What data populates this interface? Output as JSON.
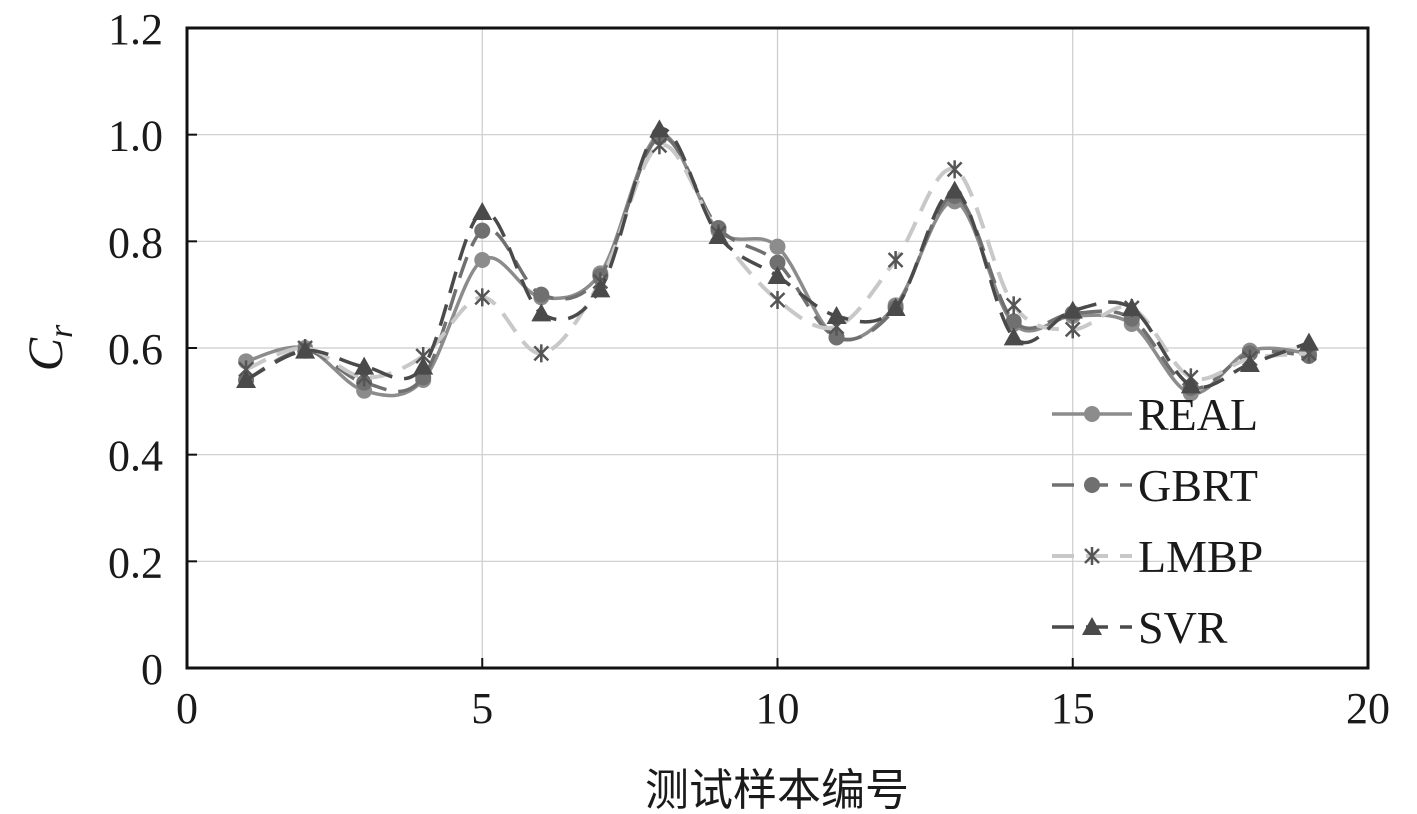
{
  "chart_data": {
    "type": "line",
    "xlabel": "测试样本编号",
    "ylabel": "C",
    "ylabel_subscript": "r",
    "xlim": [
      0,
      20
    ],
    "ylim": [
      0,
      1.2
    ],
    "xticks": [
      "0",
      "5",
      "10",
      "15",
      "20"
    ],
    "yticks": [
      "0",
      "0.2",
      "0.4",
      "0.6",
      "0.8",
      "1.0",
      "1.2"
    ],
    "grid": true,
    "legend_position": "bottom-right",
    "x": [
      1,
      2,
      3,
      4,
      5,
      6,
      7,
      8,
      9,
      10,
      11,
      12,
      13,
      14,
      15,
      16,
      17,
      18,
      19
    ],
    "series": [
      {
        "name": "REAL",
        "marker": "circle",
        "dash": "solid",
        "color": "#8c8c8c",
        "values": [
          0.575,
          0.6,
          0.52,
          0.54,
          0.765,
          0.695,
          0.74,
          1.0,
          0.82,
          0.79,
          0.62,
          0.68,
          0.875,
          0.645,
          0.66,
          0.645,
          0.515,
          0.595,
          0.59
        ]
      },
      {
        "name": "GBRT",
        "marker": "circle",
        "dash": "dashed",
        "color": "#707070",
        "values": [
          0.54,
          0.595,
          0.535,
          0.545,
          0.82,
          0.7,
          0.735,
          0.995,
          0.825,
          0.76,
          0.62,
          0.675,
          0.885,
          0.65,
          0.665,
          0.655,
          0.525,
          0.59,
          0.585
        ]
      },
      {
        "name": "LMBP",
        "marker": "asterisk",
        "dash": "dashed",
        "color": "#c8c8c8",
        "marker_color": "#555555",
        "values": [
          0.56,
          0.6,
          0.545,
          0.585,
          0.695,
          0.59,
          0.725,
          0.98,
          0.815,
          0.69,
          0.64,
          0.765,
          0.935,
          0.68,
          0.635,
          0.675,
          0.545,
          0.58,
          0.59
        ]
      },
      {
        "name": "SVR",
        "marker": "triangle",
        "dash": "dashed",
        "color": "#4a4a4a",
        "values": [
          0.54,
          0.595,
          0.565,
          0.565,
          0.855,
          0.665,
          0.71,
          1.01,
          0.81,
          0.735,
          0.66,
          0.675,
          0.895,
          0.62,
          0.67,
          0.675,
          0.53,
          0.57,
          0.61
        ]
      }
    ]
  }
}
